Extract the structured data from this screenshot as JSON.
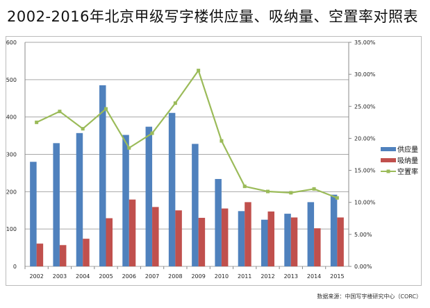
{
  "chart_data": {
    "type": "bar+line",
    "title": "2002-2016年北京甲级写字楼供应量、吸纳量、空置率对照表",
    "categories": [
      "2002",
      "2003",
      "2004",
      "2005",
      "2006",
      "2007",
      "2008",
      "2009",
      "2010",
      "2011",
      "2012",
      "2013",
      "2014",
      "2015"
    ],
    "series": [
      {
        "name": "供应量",
        "type": "bar",
        "axis": "left",
        "color": "#4F81BD",
        "values": [
          280,
          330,
          357,
          485,
          352,
          374,
          411,
          328,
          234,
          148,
          125,
          141,
          172,
          192
        ]
      },
      {
        "name": "吸纳量",
        "type": "bar",
        "axis": "left",
        "color": "#C0504D",
        "values": [
          61,
          57,
          74,
          129,
          179,
          159,
          150,
          130,
          155,
          172,
          147,
          131,
          102,
          131
        ]
      },
      {
        "name": "空置率",
        "type": "line",
        "axis": "right",
        "color": "#9BBB59",
        "values": [
          22.5,
          24.2,
          21.5,
          24.6,
          18.5,
          20.8,
          25.5,
          30.6,
          19.6,
          12.5,
          11.7,
          11.5,
          12.1,
          10.7
        ]
      }
    ],
    "ylim_left": [
      0,
      600
    ],
    "yticks_left": [
      "0",
      "100",
      "200",
      "300",
      "400",
      "500",
      "600"
    ],
    "ylim_right": [
      0,
      35
    ],
    "yticks_right": [
      "0.00%",
      "5.00%",
      "10.00%",
      "15.00%",
      "20.00%",
      "25.00%",
      "30.00%",
      "35.00%"
    ],
    "grid": true,
    "legend": "right"
  },
  "source": "数据来源：中国写字楼研究中心（CORC）"
}
